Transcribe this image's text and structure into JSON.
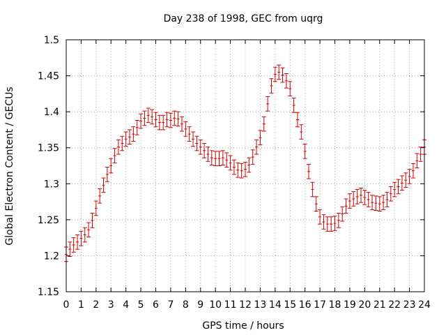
{
  "chart_data": {
    "type": "scatter",
    "title": "Day 238 of 1998, GEC from uqrg",
    "xlabel": "GPS time / hours",
    "ylabel": "Global Electron Content / GECUs",
    "xlim": [
      0,
      24
    ],
    "ylim": [
      1.15,
      1.5
    ],
    "x_ticks": [
      "0",
      "1",
      "2",
      "3",
      "4",
      "5",
      "6",
      "7",
      "8",
      "9",
      "10",
      "11",
      "12",
      "13",
      "14",
      "15",
      "16",
      "17",
      "18",
      "19",
      "20",
      "21",
      "22",
      "23",
      "24"
    ],
    "y_ticks": [
      "1.15",
      "1.2",
      "1.25",
      "1.3",
      "1.35",
      "1.4",
      "1.45",
      "1.5"
    ],
    "grid": true,
    "series_color": "#cc0000",
    "error": 0.01,
    "points": [
      [
        0.0,
        1.202
      ],
      [
        0.25,
        1.209
      ],
      [
        0.5,
        1.215
      ],
      [
        0.75,
        1.219
      ],
      [
        1.0,
        1.224
      ],
      [
        1.25,
        1.229
      ],
      [
        1.5,
        1.236
      ],
      [
        1.75,
        1.249
      ],
      [
        2.0,
        1.266
      ],
      [
        2.25,
        1.283
      ],
      [
        2.5,
        1.298
      ],
      [
        2.75,
        1.313
      ],
      [
        3.0,
        1.325
      ],
      [
        3.25,
        1.339
      ],
      [
        3.5,
        1.351
      ],
      [
        3.75,
        1.356
      ],
      [
        4.0,
        1.362
      ],
      [
        4.25,
        1.365
      ],
      [
        4.5,
        1.369
      ],
      [
        4.75,
        1.378
      ],
      [
        5.0,
        1.387
      ],
      [
        5.25,
        1.391
      ],
      [
        5.5,
        1.395
      ],
      [
        5.75,
        1.393
      ],
      [
        6.0,
        1.389
      ],
      [
        6.25,
        1.385
      ],
      [
        6.5,
        1.385
      ],
      [
        6.75,
        1.389
      ],
      [
        7.0,
        1.388
      ],
      [
        7.25,
        1.391
      ],
      [
        7.5,
        1.39
      ],
      [
        7.75,
        1.383
      ],
      [
        8.0,
        1.376
      ],
      [
        8.25,
        1.369
      ],
      [
        8.5,
        1.362
      ],
      [
        8.75,
        1.356
      ],
      [
        9.0,
        1.351
      ],
      [
        9.25,
        1.346
      ],
      [
        9.5,
        1.341
      ],
      [
        9.75,
        1.336
      ],
      [
        10.0,
        1.335
      ],
      [
        10.25,
        1.335
      ],
      [
        10.5,
        1.336
      ],
      [
        10.75,
        1.333
      ],
      [
        11.0,
        1.329
      ],
      [
        11.25,
        1.323
      ],
      [
        11.5,
        1.319
      ],
      [
        11.75,
        1.318
      ],
      [
        12.0,
        1.32
      ],
      [
        12.25,
        1.326
      ],
      [
        12.5,
        1.337
      ],
      [
        12.75,
        1.351
      ],
      [
        13.0,
        1.364
      ],
      [
        13.25,
        1.383
      ],
      [
        13.5,
        1.411
      ],
      [
        13.75,
        1.436
      ],
      [
        14.0,
        1.452
      ],
      [
        14.25,
        1.455
      ],
      [
        14.5,
        1.451
      ],
      [
        14.75,
        1.443
      ],
      [
        15.0,
        1.432
      ],
      [
        15.25,
        1.409
      ],
      [
        15.5,
        1.389
      ],
      [
        15.75,
        1.372
      ],
      [
        16.0,
        1.345
      ],
      [
        16.25,
        1.317
      ],
      [
        16.5,
        1.292
      ],
      [
        16.75,
        1.272
      ],
      [
        17.0,
        1.254
      ],
      [
        17.25,
        1.247
      ],
      [
        17.5,
        1.244
      ],
      [
        17.75,
        1.244
      ],
      [
        18.0,
        1.245
      ],
      [
        18.25,
        1.249
      ],
      [
        18.5,
        1.258
      ],
      [
        18.75,
        1.269
      ],
      [
        19.0,
        1.276
      ],
      [
        19.25,
        1.279
      ],
      [
        19.5,
        1.282
      ],
      [
        19.75,
        1.284
      ],
      [
        20.0,
        1.281
      ],
      [
        20.25,
        1.278
      ],
      [
        20.5,
        1.274
      ],
      [
        20.75,
        1.273
      ],
      [
        21.0,
        1.272
      ],
      [
        21.25,
        1.274
      ],
      [
        21.5,
        1.278
      ],
      [
        21.75,
        1.286
      ],
      [
        22.0,
        1.292
      ],
      [
        22.25,
        1.296
      ],
      [
        22.5,
        1.301
      ],
      [
        22.75,
        1.305
      ],
      [
        23.0,
        1.31
      ],
      [
        23.25,
        1.318
      ],
      [
        23.5,
        1.332
      ],
      [
        23.75,
        1.341
      ],
      [
        24.0,
        1.351
      ]
    ]
  }
}
